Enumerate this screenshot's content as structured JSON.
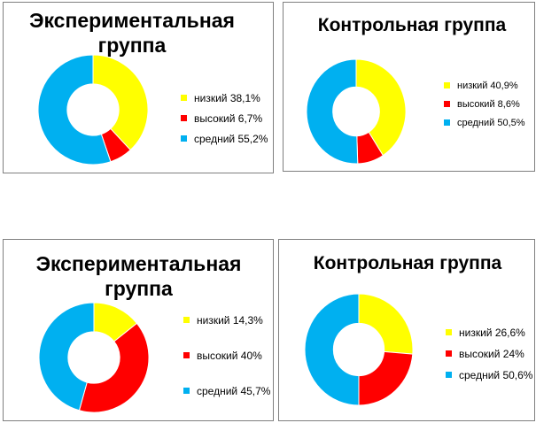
{
  "colors": {
    "low": "#ffff00",
    "high": "#ff0000",
    "medium": "#00b0f0"
  },
  "chart_data": [
    {
      "type": "pie",
      "title": "Экспериментальная группа",
      "categories": [
        "низкий",
        "высокий",
        "средний"
      ],
      "values": [
        38.1,
        6.7,
        55.2
      ],
      "legend_labels": [
        "низкий 38,1%",
        "высокий 6,7%",
        "средний 55,2%"
      ],
      "legend": "right"
    },
    {
      "type": "pie",
      "title": "Контрольная группа",
      "categories": [
        "низкий",
        "высокий",
        "средний"
      ],
      "values": [
        40.9,
        8.6,
        50.5
      ],
      "legend_labels": [
        "низкий 40,9%",
        "высокий 8,6%",
        "средний 50,5%"
      ],
      "legend": "right"
    },
    {
      "type": "pie",
      "title": "Экспериментальная группа",
      "categories": [
        "низкий",
        "высокий",
        "средний"
      ],
      "values": [
        14.3,
        40,
        45.7
      ],
      "legend_labels": [
        "низкий 14,3%",
        "высокий 40%",
        "средний 45,7%"
      ],
      "legend": "right"
    },
    {
      "type": "pie",
      "title": "Контрольная группа",
      "categories": [
        "низкий",
        "высокий",
        "средний"
      ],
      "values": [
        26.6,
        24,
        50.6
      ],
      "legend_labels": [
        "низкий 26,6%",
        "высокий 24%",
        "средний 50,6%"
      ],
      "legend": "right"
    }
  ]
}
